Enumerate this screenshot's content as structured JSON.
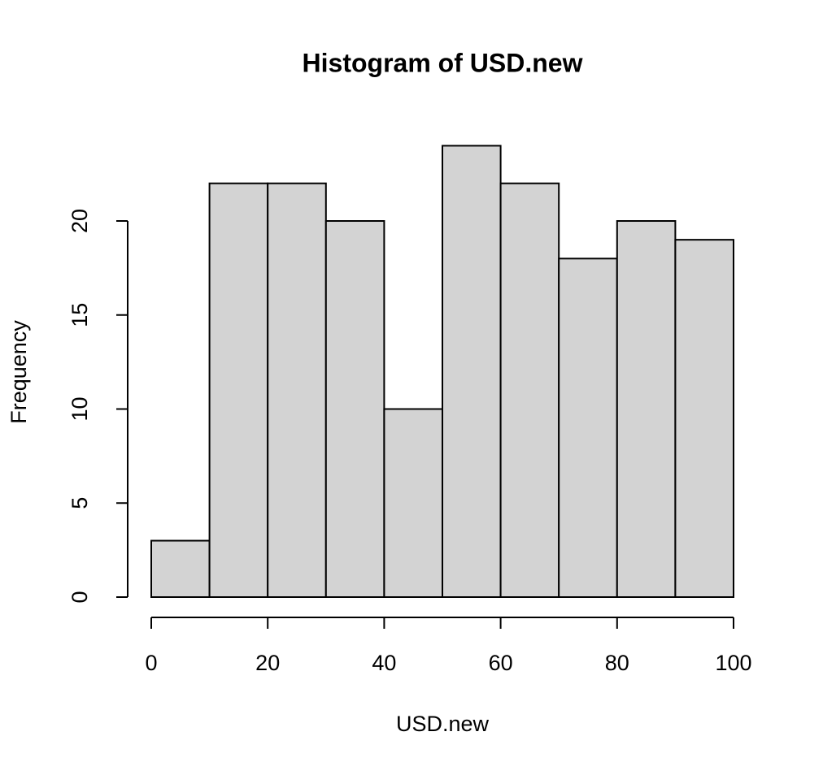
{
  "chart_data": {
    "type": "histogram",
    "title": "Histogram of USD.new",
    "x_label": "USD.new",
    "y_label": "Frequency",
    "bins": [
      0,
      10,
      20,
      30,
      40,
      50,
      60,
      70,
      80,
      90,
      100
    ],
    "values": [
      3,
      22,
      22,
      20,
      10,
      24,
      22,
      18,
      20,
      19
    ],
    "color": "#d3d3d3",
    "xlim": [
      0,
      100
    ],
    "xticks": [
      0,
      20,
      40,
      60,
      80,
      100
    ],
    "ylim": [
      0,
      24
    ],
    "yticks": [
      0,
      5,
      10,
      15,
      20
    ]
  }
}
